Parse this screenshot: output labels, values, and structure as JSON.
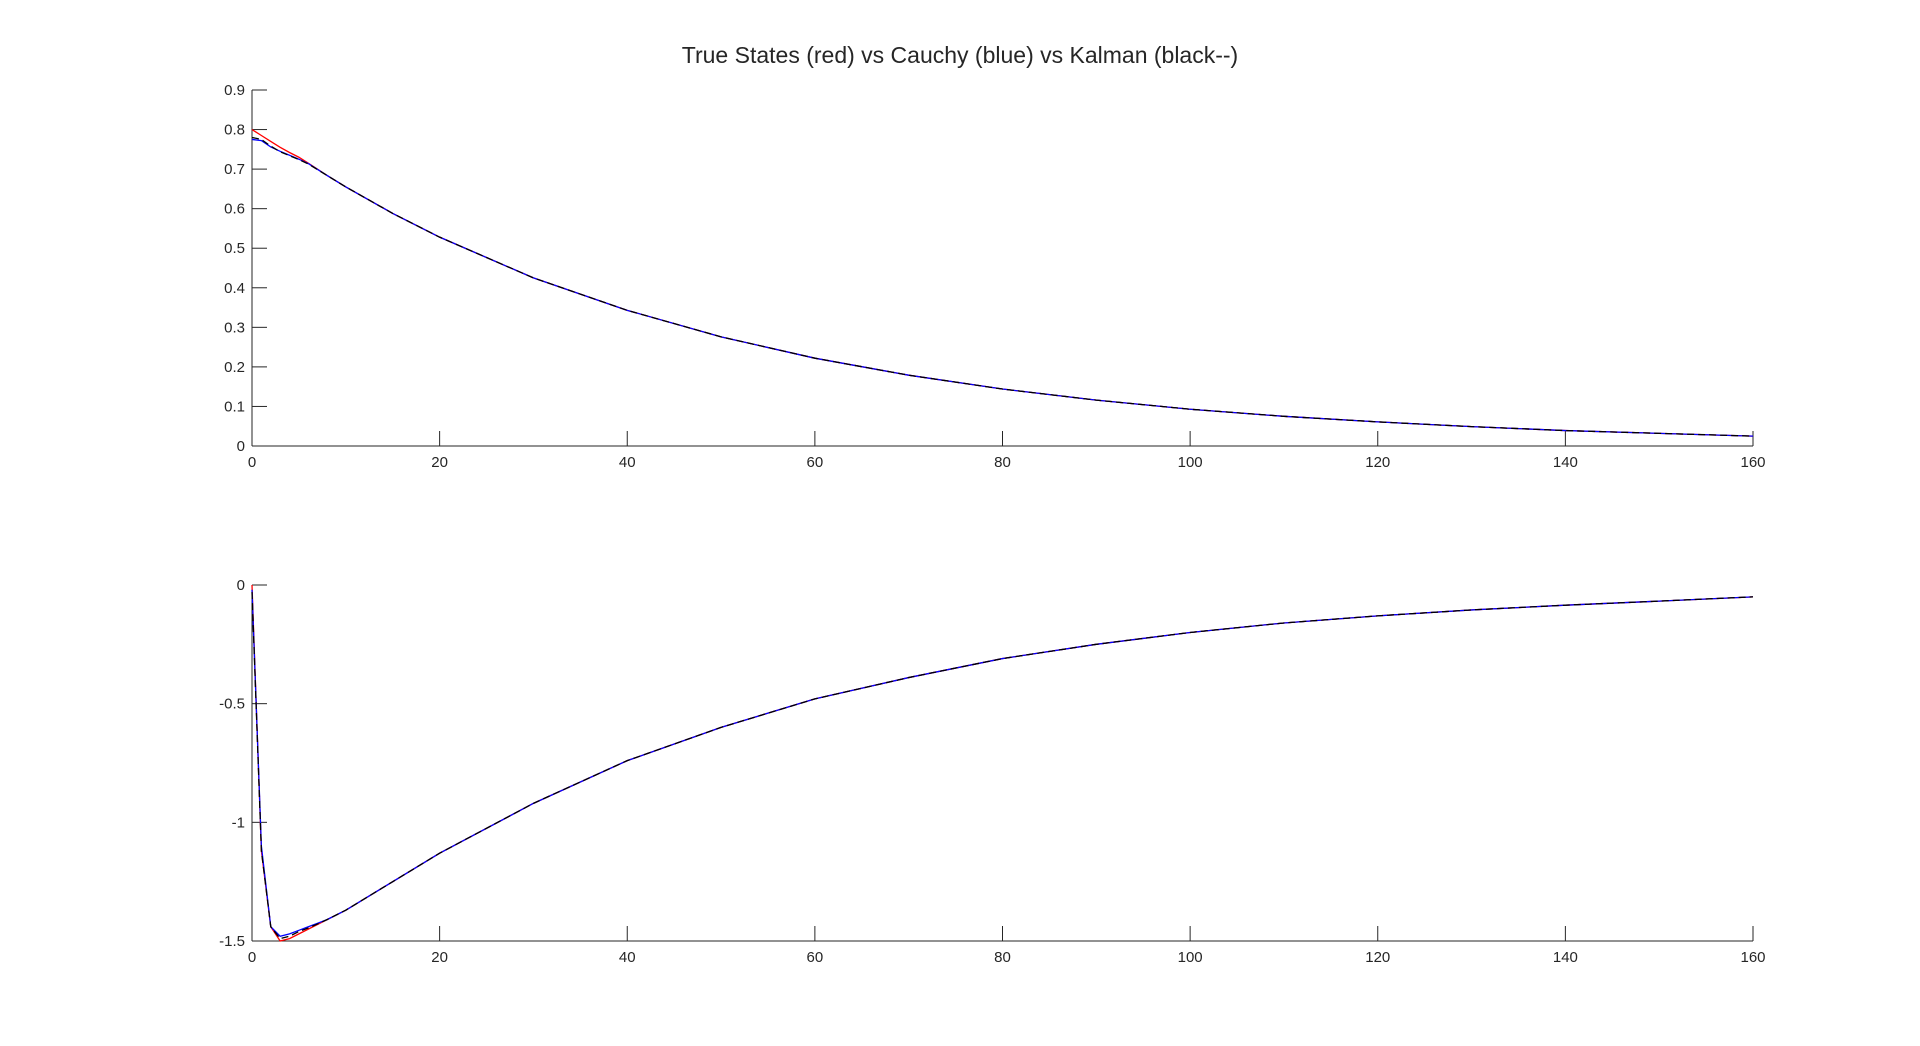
{
  "figure": {
    "title": "True States (red) vs Cauchy (blue) vs Kalman (black--)"
  },
  "colors": {
    "true_state": "#ff0000",
    "cauchy": "#0000ff",
    "kalman": "#000000",
    "axis": "#262626",
    "background": "#ffffff"
  },
  "chart_data": [
    {
      "type": "line",
      "title": "True States (red) vs Cauchy (blue) vs Kalman (black--)",
      "xlabel": "",
      "ylabel": "",
      "xlim": [
        0,
        160
      ],
      "ylim": [
        0,
        0.9
      ],
      "grid": false,
      "xticks": [
        0,
        20,
        40,
        60,
        80,
        100,
        120,
        140,
        160
      ],
      "yticks": [
        0,
        0.1,
        0.2,
        0.3,
        0.4,
        0.5,
        0.6,
        0.7,
        0.8,
        0.9
      ],
      "xtick_labels": [
        "0",
        "20",
        "40",
        "60",
        "80",
        "100",
        "120",
        "140",
        "160"
      ],
      "ytick_labels": [
        "0",
        "0.1",
        "0.2",
        "0.3",
        "0.4",
        "0.5",
        "0.6",
        "0.7",
        "0.8",
        "0.9"
      ],
      "series": [
        {
          "color": "#ff0000",
          "style": "solid",
          "x": [
            0,
            1,
            2,
            3,
            4,
            5,
            6,
            8,
            10,
            15,
            20,
            30,
            40,
            50,
            60,
            70,
            80,
            90,
            100,
            110,
            120,
            130,
            140,
            150,
            160
          ],
          "y": [
            0.8,
            0.785,
            0.77,
            0.755,
            0.742,
            0.73,
            0.715,
            0.684,
            0.655,
            0.588,
            0.528,
            0.425,
            0.343,
            0.276,
            0.222,
            0.179,
            0.144,
            0.116,
            0.093,
            0.075,
            0.061,
            0.049,
            0.039,
            0.032,
            0.025
          ]
        },
        {
          "color": "#0000ff",
          "style": "solid",
          "x": [
            0,
            1,
            2,
            3,
            4,
            5,
            6,
            8,
            10,
            15,
            20,
            30,
            40,
            50,
            60,
            70,
            80,
            90,
            100,
            110,
            120,
            130,
            140,
            150,
            160
          ],
          "y": [
            0.775,
            0.772,
            0.756,
            0.745,
            0.735,
            0.725,
            0.714,
            0.684,
            0.655,
            0.588,
            0.528,
            0.425,
            0.343,
            0.276,
            0.222,
            0.179,
            0.144,
            0.116,
            0.093,
            0.075,
            0.061,
            0.049,
            0.039,
            0.032,
            0.025
          ]
        },
        {
          "color": "#000000",
          "style": "dashed",
          "x": [
            0,
            1,
            2,
            3,
            4,
            5,
            6,
            8,
            10,
            15,
            20,
            30,
            40,
            50,
            60,
            70,
            80,
            90,
            100,
            110,
            120,
            130,
            140,
            150,
            160
          ],
          "y": [
            0.78,
            0.775,
            0.758,
            0.744,
            0.734,
            0.724,
            0.713,
            0.684,
            0.655,
            0.588,
            0.528,
            0.425,
            0.343,
            0.276,
            0.222,
            0.179,
            0.144,
            0.116,
            0.093,
            0.075,
            0.061,
            0.049,
            0.039,
            0.032,
            0.025
          ]
        }
      ]
    },
    {
      "type": "line",
      "title": "",
      "xlabel": "",
      "ylabel": "",
      "xlim": [
        0,
        160
      ],
      "ylim": [
        -1.5,
        0
      ],
      "grid": false,
      "xticks": [
        0,
        20,
        40,
        60,
        80,
        100,
        120,
        140,
        160
      ],
      "yticks": [
        -1.5,
        -1,
        -0.5,
        0
      ],
      "xtick_labels": [
        "0",
        "20",
        "40",
        "60",
        "80",
        "100",
        "120",
        "140",
        "160"
      ],
      "ytick_labels": [
        "-1.5",
        "-1",
        "-0.5",
        "0"
      ],
      "series": [
        {
          "color": "#ff0000",
          "style": "solid",
          "x": [
            0,
            1,
            2,
            3,
            4,
            5,
            6,
            7,
            8,
            10,
            15,
            20,
            30,
            40,
            50,
            60,
            70,
            80,
            90,
            100,
            110,
            120,
            130,
            140,
            150,
            160
          ],
          "y": [
            0,
            -1.12,
            -1.44,
            -1.5,
            -1.49,
            -1.47,
            -1.45,
            -1.43,
            -1.41,
            -1.37,
            -1.25,
            -1.13,
            -0.92,
            -0.74,
            -0.6,
            -0.48,
            -0.39,
            -0.31,
            -0.25,
            -0.2,
            -0.16,
            -0.13,
            -0.105,
            -0.085,
            -0.068,
            -0.05
          ]
        },
        {
          "color": "#0000ff",
          "style": "solid",
          "x": [
            0,
            1,
            2,
            3,
            4,
            5,
            6,
            7,
            8,
            10,
            15,
            20,
            30,
            40,
            50,
            60,
            70,
            80,
            90,
            100,
            110,
            120,
            130,
            140,
            150,
            160
          ],
          "y": [
            -0.02,
            -1.1,
            -1.44,
            -1.48,
            -1.47,
            -1.455,
            -1.44,
            -1.425,
            -1.41,
            -1.37,
            -1.25,
            -1.13,
            -0.92,
            -0.74,
            -0.6,
            -0.48,
            -0.39,
            -0.31,
            -0.25,
            -0.2,
            -0.16,
            -0.13,
            -0.105,
            -0.085,
            -0.068,
            -0.05
          ]
        },
        {
          "color": "#000000",
          "style": "dashed",
          "x": [
            0,
            1,
            2,
            3,
            4,
            5,
            6,
            7,
            8,
            10,
            15,
            20,
            30,
            40,
            50,
            60,
            70,
            80,
            90,
            100,
            110,
            120,
            130,
            140,
            150,
            160
          ],
          "y": [
            -0.03,
            -1.12,
            -1.44,
            -1.49,
            -1.48,
            -1.46,
            -1.445,
            -1.428,
            -1.41,
            -1.37,
            -1.25,
            -1.13,
            -0.92,
            -0.74,
            -0.6,
            -0.48,
            -0.39,
            -0.31,
            -0.25,
            -0.2,
            -0.16,
            -0.13,
            -0.105,
            -0.085,
            -0.068,
            -0.05
          ]
        }
      ]
    }
  ]
}
